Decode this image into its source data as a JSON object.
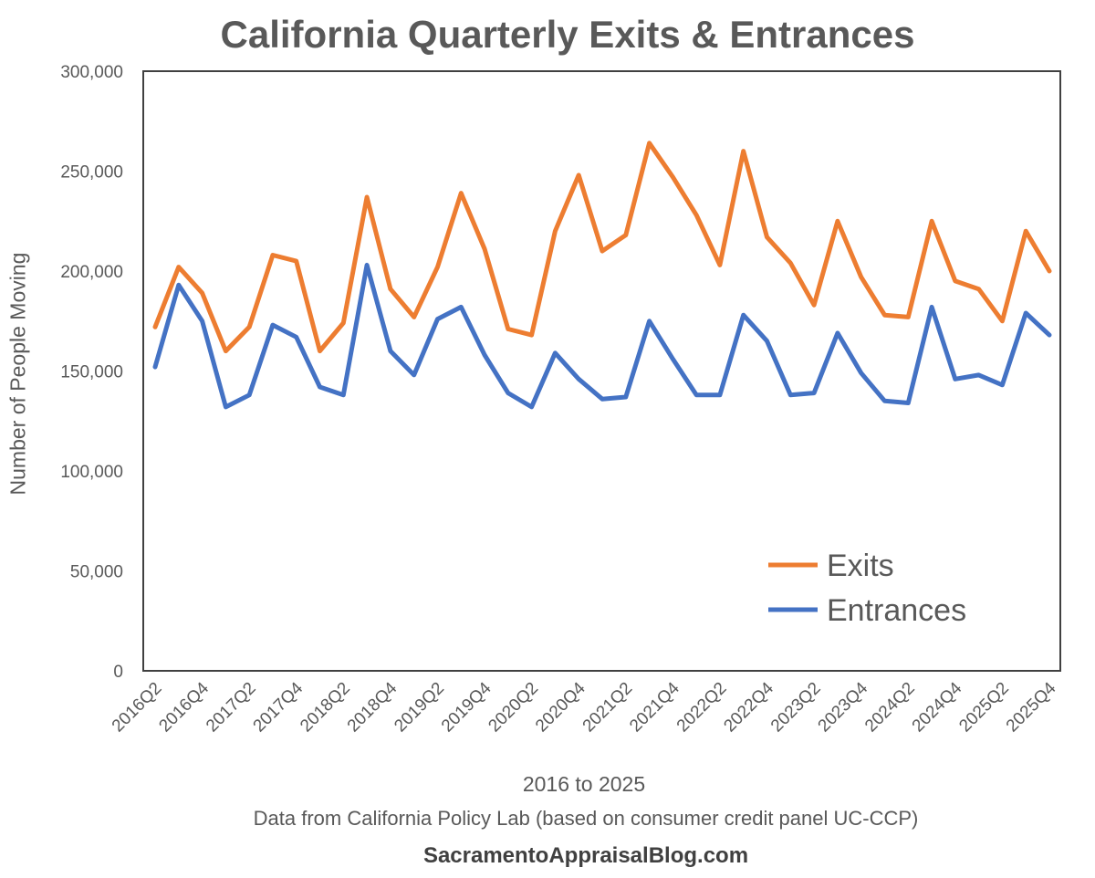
{
  "chart_data": {
    "type": "line",
    "title": "California Quarterly Exits & Entrances",
    "xlabel": "2016 to 2025",
    "ylabel": "Number of People Moving",
    "ylim": [
      0,
      300000
    ],
    "yticks": [
      "0",
      "50,000",
      "100,000",
      "150,000",
      "200,000",
      "250,000",
      "300,000"
    ],
    "grid": false,
    "legend_position": "bottom-right",
    "x": [
      "2016Q2",
      "2016Q3",
      "2016Q4",
      "2017Q1",
      "2017Q2",
      "2017Q3",
      "2017Q4",
      "2018Q1",
      "2018Q2",
      "2018Q3",
      "2018Q4",
      "2019Q1",
      "2019Q2",
      "2019Q3",
      "2019Q4",
      "2020Q1",
      "2020Q2",
      "2020Q3",
      "2020Q4",
      "2021Q1",
      "2021Q2",
      "2021Q3",
      "2021Q4",
      "2022Q1",
      "2022Q2",
      "2022Q3",
      "2022Q4",
      "2023Q1",
      "2023Q2",
      "2023Q3",
      "2023Q4",
      "2024Q1",
      "2024Q2",
      "2024Q3",
      "2024Q4",
      "2025Q1",
      "2025Q2",
      "2025Q3",
      "2025Q4"
    ],
    "xtick_labels": [
      "2016Q2",
      "2016Q4",
      "2017Q2",
      "2017Q4",
      "2018Q2",
      "2018Q4",
      "2019Q2",
      "2019Q4",
      "2020Q2",
      "2020Q4",
      "2021Q2",
      "2021Q4",
      "2022Q2",
      "2022Q4",
      "2023Q2",
      "2023Q4",
      "2024Q2",
      "2024Q4",
      "2025Q2",
      "2025Q4"
    ],
    "series": [
      {
        "name": "Exits",
        "color": "#ED7D31",
        "values": [
          172000,
          202000,
          189000,
          160000,
          172000,
          208000,
          205000,
          160000,
          174000,
          237000,
          191000,
          177000,
          202000,
          239000,
          211000,
          171000,
          168000,
          220000,
          248000,
          210000,
          218000,
          264000,
          247000,
          228000,
          203000,
          260000,
          217000,
          204000,
          183000,
          225000,
          197000,
          178000,
          177000,
          225000,
          195000,
          191000,
          175000,
          220000,
          200000
        ]
      },
      {
        "name": "Entrances",
        "color": "#4472C4",
        "values": [
          152000,
          193000,
          175000,
          132000,
          138000,
          173000,
          167000,
          142000,
          138000,
          203000,
          160000,
          148000,
          176000,
          182000,
          158000,
          139000,
          132000,
          159000,
          146000,
          136000,
          137000,
          175000,
          156000,
          138000,
          138000,
          178000,
          165000,
          138000,
          139000,
          169000,
          149000,
          135000,
          134000,
          182000,
          146000,
          148000,
          143000,
          179000,
          168000
        ]
      }
    ]
  },
  "footer": {
    "source": "Data from California Policy Lab (based on consumer credit panel UC-CCP)",
    "site": "SacramentoAppraisalBlog.com"
  }
}
